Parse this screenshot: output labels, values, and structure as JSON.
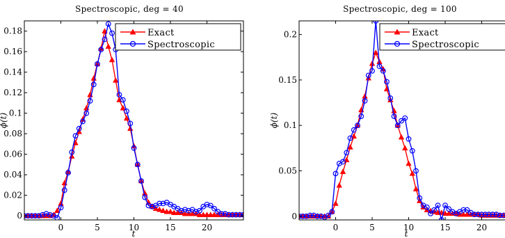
{
  "chart_data": [
    {
      "type": "line",
      "title": "Spectroscopic, deg = 40",
      "xlabel": "t",
      "ylabel": "ϕ(t)",
      "xlim": [
        -5,
        25
      ],
      "ylim": [
        -0.004,
        0.19
      ],
      "xticks": [
        0,
        5,
        10,
        15,
        20
      ],
      "yticks": [
        0,
        0.02,
        0.04,
        0.06,
        0.08,
        0.1,
        0.12,
        0.14,
        0.16,
        0.18
      ],
      "ytick_labels": [
        "0",
        "0.02",
        "0.04",
        "0.06",
        "0.08",
        "0.1",
        "0.12",
        "0.14",
        "0.16",
        "0.18"
      ],
      "legend_position": "top-right",
      "series": [
        {
          "name": "Exact",
          "color": "#ff0000",
          "marker": "triangle",
          "x": [
            -5,
            -4.5,
            -4,
            -3.5,
            -3,
            -2.5,
            -2,
            -1.5,
            -1,
            -0.5,
            0,
            0.5,
            1,
            1.5,
            2,
            2.5,
            3,
            3.5,
            4,
            4.5,
            5,
            5.5,
            6,
            6.5,
            7,
            7.5,
            8,
            8.5,
            9,
            9.5,
            10,
            10.5,
            11,
            11.5,
            12,
            12.5,
            13,
            13.5,
            14,
            14.5,
            15,
            15.5,
            16,
            16.5,
            17,
            17.5,
            18,
            18.5,
            19,
            19.5,
            20,
            20.5,
            21,
            21.5,
            22,
            22.5,
            23,
            23.5,
            24,
            24.5,
            25
          ],
          "y": [
            0,
            0,
            0,
            0,
            0,
            0,
            0,
            0,
            0.001,
            0.005,
            0.012,
            0.032,
            0.043,
            0.058,
            0.071,
            0.082,
            0.094,
            0.105,
            0.118,
            0.134,
            0.148,
            0.163,
            0.18,
            0.165,
            0.152,
            0.132,
            0.113,
            0.105,
            0.095,
            0.085,
            0.068,
            0.05,
            0.034,
            0.022,
            0.013,
            0.009,
            0.007,
            0.006,
            0.005,
            0.004,
            0.004,
            0.003,
            0.003,
            0.003,
            0.002,
            0.002,
            0.002,
            0.002,
            0.001,
            0.001,
            0.001,
            0.001,
            0.001,
            0.001,
            0.001,
            0.001,
            0.001,
            0.001,
            0.001,
            0.001,
            0.001
          ]
        },
        {
          "name": "Spectroscopic",
          "color": "#0000ff",
          "marker": "circle",
          "x": [
            -5,
            -4.5,
            -4,
            -3.5,
            -3,
            -2.5,
            -2,
            -1.5,
            -1,
            -0.5,
            0,
            0.5,
            1,
            1.5,
            2,
            2.5,
            3,
            3.5,
            4,
            4.5,
            5,
            5.5,
            6,
            6.5,
            7,
            7.5,
            8,
            8.5,
            9,
            9.5,
            10,
            10.5,
            11,
            11.5,
            12,
            12.5,
            13,
            13.5,
            14,
            14.5,
            15,
            15.5,
            16,
            16.5,
            17,
            17.5,
            18,
            18.5,
            19,
            19.5,
            20,
            20.5,
            21,
            21.5,
            22,
            22.5,
            23,
            23.5,
            24,
            24.5,
            25
          ],
          "y": [
            0,
            0,
            0,
            0,
            0,
            0.001,
            0.002,
            0.001,
            0,
            -0.002,
            0.008,
            0.025,
            0.042,
            0.062,
            0.078,
            0.085,
            0.092,
            0.1,
            0.112,
            0.128,
            0.148,
            0.162,
            0.172,
            0.187,
            0.178,
            0.162,
            0.118,
            0.113,
            0.102,
            0.09,
            0.066,
            0.05,
            0.034,
            0.018,
            0.01,
            0.009,
            0.01,
            0.012,
            0.012,
            0.013,
            0.011,
            0.009,
            0.007,
            0.005,
            0.006,
            0.005,
            0.006,
            0.004,
            0.005,
            0.009,
            0.011,
            0.01,
            0.007,
            0.004,
            0.002,
            0.002,
            0.001,
            0.001,
            0.001,
            0.001,
            0.001
          ]
        }
      ]
    },
    {
      "type": "line",
      "title": "Spectroscopic, deg = 100",
      "xlabel": "t",
      "ylabel": "ϕ(t)",
      "xlim": [
        -5,
        25
      ],
      "ylim": [
        -0.004,
        0.215
      ],
      "xticks": [
        0,
        5,
        10,
        15,
        20
      ],
      "yticks": [
        0,
        0.05,
        0.1,
        0.15,
        0.2
      ],
      "ytick_labels": [
        "0",
        "0.05",
        "0.1",
        "0.15",
        "0.2"
      ],
      "legend_position": "top-right",
      "series": [
        {
          "name": "Exact",
          "color": "#ff0000",
          "marker": "triangle",
          "x": [
            -5,
            -4.5,
            -4,
            -3.5,
            -3,
            -2.5,
            -2,
            -1.5,
            -1,
            -0.5,
            0,
            0.5,
            1,
            1.5,
            2,
            2.5,
            3,
            3.5,
            4,
            4.5,
            5,
            5.5,
            6,
            6.5,
            7,
            7.5,
            8,
            8.5,
            9,
            9.5,
            10,
            10.5,
            11,
            11.5,
            12,
            12.5,
            13,
            13.5,
            14,
            14.5,
            15,
            15.5,
            16,
            16.5,
            17,
            17.5,
            18,
            18.5,
            19,
            19.5,
            20,
            20.5,
            21,
            21.5,
            22,
            22.5,
            23,
            23.5,
            24,
            24.5,
            25
          ],
          "y": [
            0,
            0,
            0,
            0,
            0,
            0,
            0,
            0,
            0,
            0.005,
            0.014,
            0.034,
            0.049,
            0.062,
            0.076,
            0.088,
            0.1,
            0.117,
            0.132,
            0.152,
            0.168,
            0.18,
            0.17,
            0.162,
            0.14,
            0.128,
            0.116,
            0.1,
            0.087,
            0.075,
            0.058,
            0.047,
            0.03,
            0.017,
            0.01,
            0.007,
            0.006,
            0.005,
            0.004,
            0.004,
            0.003,
            0.003,
            0.003,
            0.003,
            0.002,
            0.002,
            0.002,
            0.002,
            0.002,
            0.002,
            0.001,
            0.001,
            0.001,
            0.001,
            0.001,
            0.001,
            0.001,
            0.001,
            0.001,
            0.001,
            0.001
          ]
        },
        {
          "name": "Spectroscopic",
          "color": "#0000ff",
          "marker": "circle",
          "x": [
            -5,
            -4.5,
            -4,
            -3.5,
            -3,
            -2.5,
            -2,
            -1.5,
            -1,
            -0.5,
            0,
            0.5,
            1,
            1.5,
            2,
            2.5,
            3,
            3.5,
            4,
            4.5,
            5,
            5.5,
            6,
            6.5,
            7,
            7.5,
            8,
            8.5,
            9,
            9.5,
            10,
            10.5,
            11,
            11.5,
            12,
            12.5,
            13,
            13.5,
            14,
            14.5,
            15,
            15.5,
            16,
            16.5,
            17,
            17.5,
            18,
            18.5,
            19,
            19.5,
            20,
            20.5,
            21,
            21.5,
            22,
            22.5,
            23,
            23.5,
            24,
            24.5,
            25
          ],
          "y": [
            0,
            0,
            0,
            0.001,
            0.001,
            0,
            0,
            -0.001,
            0.001,
            0.005,
            0.047,
            0.058,
            0.06,
            0.07,
            0.086,
            0.095,
            0.1,
            0.11,
            0.127,
            0.155,
            0.16,
            0.215,
            0.165,
            0.16,
            0.148,
            0.13,
            0.11,
            0.1,
            0.105,
            0.108,
            0.085,
            0.072,
            0.05,
            0.02,
            0.012,
            0.01,
            0.003,
            0.007,
            0.012,
            -0.004,
            0.012,
            0.008,
            0.005,
            0.003,
            0.005,
            0.007,
            0.007,
            0.004,
            0.002,
            0.002,
            0.002,
            0.002,
            0.002,
            0.002,
            0.002,
            0.001,
            0.001,
            0.001,
            0.001,
            0.001,
            0.001
          ]
        }
      ]
    }
  ]
}
